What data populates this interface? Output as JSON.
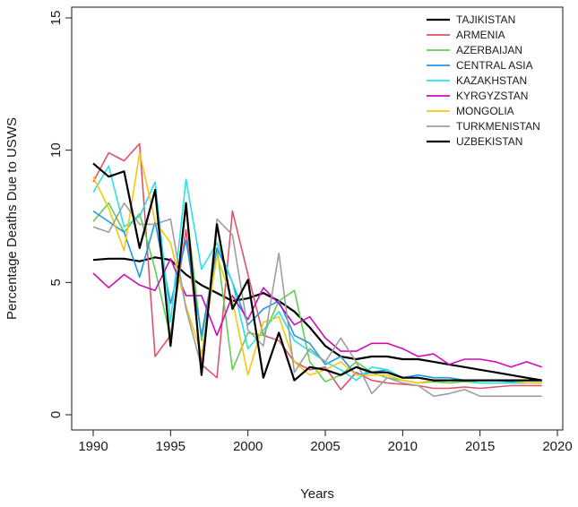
{
  "chart_data": {
    "type": "line",
    "title": "",
    "xlabel": "Years",
    "ylabel": "Percentage Deaths Due to USWS",
    "xlim": [
      1990,
      2020
    ],
    "ylim": [
      0,
      15
    ],
    "x_ticks": [
      1990,
      1995,
      2000,
      2005,
      2010,
      2015,
      2020
    ],
    "y_ticks": [
      0,
      5,
      10,
      15
    ],
    "grid": false,
    "legend_position": "top-right",
    "x": [
      1990,
      1991,
      1992,
      1993,
      1994,
      1995,
      1996,
      1997,
      1998,
      1999,
      2000,
      2001,
      2002,
      2003,
      2004,
      2005,
      2006,
      2007,
      2008,
      2009,
      2010,
      2011,
      2012,
      2013,
      2014,
      2015,
      2016,
      2017,
      2018,
      2019
    ],
    "series": [
      {
        "name": "TAJIKISTAN",
        "color": "#000000",
        "values": [
          5.85,
          5.9,
          5.9,
          5.8,
          5.95,
          5.85,
          5.3,
          4.9,
          4.6,
          4.3,
          4.4,
          4.6,
          4.3,
          3.9,
          3.3,
          2.6,
          2.2,
          2.1,
          2.2,
          2.2,
          2.1,
          2.1,
          2.0,
          1.9,
          1.8,
          1.7,
          1.6,
          1.5,
          1.4,
          1.3
        ]
      },
      {
        "name": "ARMENIA",
        "color": "#df536b",
        "values": [
          8.8,
          9.9,
          9.6,
          10.25,
          2.2,
          3.0,
          7.0,
          1.9,
          1.4,
          7.7,
          5.3,
          3.0,
          2.8,
          2.0,
          1.7,
          1.8,
          0.95,
          1.6,
          1.3,
          1.2,
          1.15,
          1.1,
          1.0,
          1.0,
          1.05,
          1.0,
          1.05,
          1.1,
          1.1,
          1.1
        ]
      },
      {
        "name": "AZERBAIJAN",
        "color": "#61d04f",
        "values": [
          7.3,
          8.0,
          6.9,
          7.6,
          5.5,
          2.9,
          7.9,
          2.8,
          6.3,
          1.7,
          3.1,
          3.0,
          4.3,
          4.7,
          2.0,
          1.25,
          1.5,
          2.0,
          1.6,
          1.4,
          1.3,
          1.2,
          1.25,
          1.2,
          1.25,
          1.2,
          1.2,
          1.2,
          1.2,
          1.2
        ]
      },
      {
        "name": "CENTRAL ASIA",
        "color": "#2297e6",
        "values": [
          7.7,
          7.3,
          6.9,
          5.2,
          7.3,
          4.2,
          6.6,
          3.0,
          6.3,
          5.0,
          3.4,
          4.0,
          4.3,
          3.0,
          2.7,
          1.9,
          2.2,
          1.5,
          1.6,
          1.7,
          1.4,
          1.5,
          1.4,
          1.4,
          1.3,
          1.3,
          1.3,
          1.25,
          1.2,
          1.2
        ]
      },
      {
        "name": "KAZAKHSTAN",
        "color": "#28e2e5",
        "values": [
          8.4,
          9.4,
          7.1,
          7.5,
          8.8,
          3.5,
          8.9,
          5.5,
          6.5,
          5.0,
          2.5,
          3.2,
          3.9,
          2.8,
          2.4,
          2.0,
          1.7,
          1.3,
          1.8,
          1.7,
          1.4,
          1.4,
          1.3,
          1.3,
          1.3,
          1.2,
          1.2,
          1.2,
          1.2,
          1.2
        ]
      },
      {
        "name": "KYRGYZSTAN",
        "color": "#cd0bbc",
        "values": [
          5.35,
          4.8,
          5.3,
          4.9,
          4.7,
          5.9,
          4.5,
          4.5,
          3.0,
          4.5,
          3.6,
          4.8,
          4.2,
          3.4,
          3.7,
          2.9,
          2.4,
          2.4,
          2.7,
          2.7,
          2.5,
          2.2,
          2.3,
          1.9,
          2.1,
          2.1,
          2.0,
          1.8,
          2.0,
          1.8
        ]
      },
      {
        "name": "MONGOLIA",
        "color": "#f5c710",
        "values": [
          9.0,
          7.8,
          6.2,
          9.9,
          7.3,
          6.5,
          4.1,
          2.3,
          6.0,
          4.3,
          1.5,
          3.5,
          3.7,
          2.0,
          1.5,
          1.7,
          2.0,
          1.5,
          1.5,
          1.5,
          1.3,
          1.2,
          1.3,
          1.3,
          1.3,
          1.3,
          1.3,
          1.3,
          1.2,
          1.2
        ]
      },
      {
        "name": "TURKMENISTAN",
        "color": "#9e9e9e",
        "values": [
          7.1,
          6.9,
          8.0,
          7.2,
          7.2,
          7.4,
          4.0,
          1.8,
          7.4,
          6.8,
          3.2,
          2.6,
          6.1,
          1.6,
          2.5,
          2.0,
          2.9,
          2.0,
          0.8,
          1.4,
          1.2,
          1.1,
          0.7,
          0.8,
          0.95,
          0.7,
          0.7,
          0.7,
          0.7,
          0.7
        ]
      },
      {
        "name": "UZBEKISTAN",
        "color": "#000000",
        "values": [
          9.5,
          9.0,
          9.2,
          6.3,
          8.5,
          2.6,
          8.0,
          1.5,
          7.2,
          4.0,
          5.1,
          1.4,
          3.1,
          1.3,
          1.8,
          1.7,
          1.5,
          1.8,
          1.6,
          1.6,
          1.4,
          1.4,
          1.3,
          1.3,
          1.3,
          1.3,
          1.3,
          1.3,
          1.3,
          1.3
        ]
      }
    ]
  }
}
